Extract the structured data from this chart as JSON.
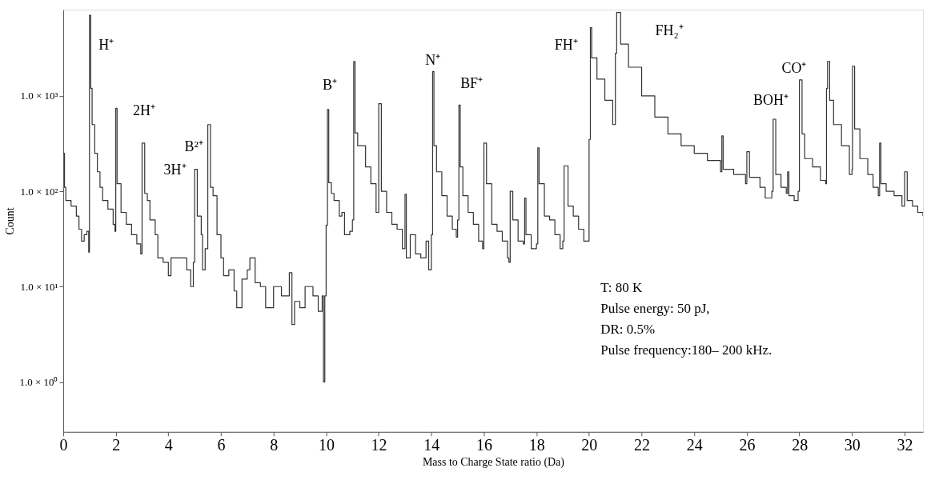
{
  "chart_data": {
    "type": "step",
    "xlabel": "Mass to Charge State ratio (Da)",
    "ylabel": "Count",
    "log": "y",
    "grid": false,
    "marker": "none",
    "line_style": "solid",
    "xlim": [
      0,
      32.7
    ],
    "xticks": [
      0,
      2,
      4,
      6,
      8,
      10,
      12,
      14,
      16,
      18,
      20,
      22,
      24,
      26,
      28,
      30,
      32
    ],
    "ylim": [
      0.3,
      8000
    ],
    "yticks": [
      {
        "value": 1,
        "label": "1.0 × 10⁰"
      },
      {
        "value": 10,
        "label": "1.0 × 10¹"
      },
      {
        "value": 100,
        "label": "1.0 × 10²"
      },
      {
        "value": 1000,
        "label": "1.0 × 10³"
      }
    ],
    "annotations": [
      "H⁺",
      "2H⁺",
      "3H⁺",
      "B²⁺",
      "B⁺",
      "N⁺",
      "BF⁺",
      "FH⁺",
      "FH₂⁺",
      "BOH⁺",
      "CO⁺",
      "T: 80 K",
      "Pulse energy: 50 pJ,",
      "DR: 0.5%",
      "Pulse frequency:180– 200 kHz."
    ],
    "series": [
      {
        "color": "#333333",
        "x": [
          0,
          0.05,
          0.1,
          0.3,
          0.5,
          0.6,
          0.7,
          0.8,
          0.9,
          0.97,
          1.0,
          1.05,
          1.1,
          1.2,
          1.3,
          1.4,
          1.5,
          1.7,
          1.9,
          1.97,
          2.0,
          2.05,
          2.2,
          2.4,
          2.6,
          2.8,
          2.95,
          3.0,
          3.1,
          3.2,
          3.3,
          3.5,
          3.6,
          3.8,
          4.0,
          4.1,
          4.4,
          4.7,
          4.85,
          4.95,
          5.0,
          5.1,
          5.25,
          5.3,
          5.4,
          5.5,
          5.6,
          5.7,
          5.85,
          6.0,
          6.1,
          6.3,
          6.5,
          6.6,
          6.8,
          7.0,
          7.1,
          7.3,
          7.5,
          7.7,
          8.0,
          8.3,
          8.6,
          8.7,
          8.8,
          9.0,
          9.2,
          9.5,
          9.7,
          9.85,
          9.9,
          9.95,
          10.0,
          10.05,
          10.1,
          10.2,
          10.3,
          10.5,
          10.6,
          10.7,
          10.9,
          11.0,
          11.05,
          11.1,
          11.2,
          11.5,
          11.7,
          11.9,
          12.0,
          12.1,
          12.3,
          12.5,
          12.7,
          12.9,
          13.0,
          13.05,
          13.2,
          13.4,
          13.6,
          13.8,
          13.9,
          14.0,
          14.05,
          14.1,
          14.2,
          14.4,
          14.6,
          14.8,
          14.95,
          15.0,
          15.05,
          15.1,
          15.2,
          15.4,
          15.6,
          15.8,
          15.95,
          16.0,
          16.1,
          16.3,
          16.5,
          16.7,
          16.9,
          16.95,
          17.0,
          17.1,
          17.3,
          17.5,
          17.55,
          17.6,
          17.8,
          18.0,
          18.05,
          18.1,
          18.3,
          18.5,
          18.7,
          18.9,
          19.0,
          19.05,
          19.2,
          19.4,
          19.6,
          19.8,
          19.95,
          20.0,
          20.05,
          20.1,
          20.3,
          20.6,
          20.9,
          21.0,
          21.05,
          21.2,
          21.5,
          22.0,
          22.5,
          23.0,
          23.5,
          24.0,
          24.5,
          25.0,
          25.05,
          25.1,
          25.5,
          25.95,
          26.0,
          26.1,
          26.5,
          26.7,
          26.95,
          27.0,
          27.1,
          27.3,
          27.5,
          27.55,
          27.6,
          27.8,
          27.95,
          28.0,
          28.1,
          28.2,
          28.5,
          28.8,
          29.0,
          29.03,
          29.07,
          29.15,
          29.3,
          29.6,
          29.9,
          30.0,
          30.02,
          30.1,
          30.3,
          30.6,
          30.8,
          31.0,
          31.05,
          31.1,
          31.3,
          31.6,
          31.9,
          32.0,
          32.1,
          32.3,
          32.5,
          32.7
        ],
        "values": [
          250,
          110,
          80,
          70,
          55,
          40,
          30,
          35,
          38,
          23,
          7000,
          1200,
          500,
          250,
          160,
          110,
          80,
          65,
          45,
          38,
          740,
          120,
          60,
          45,
          35,
          28,
          22,
          320,
          95,
          80,
          50,
          35,
          20,
          18,
          13,
          20,
          20,
          15,
          10,
          18,
          170,
          55,
          35,
          15,
          25,
          500,
          110,
          90,
          35,
          20,
          13,
          15,
          9,
          6,
          12,
          15,
          20,
          11,
          10,
          6,
          10,
          8,
          14,
          4,
          7,
          6,
          10,
          8,
          5.5,
          8,
          1,
          8,
          44,
          720,
          123,
          95,
          80,
          55,
          60,
          35,
          38,
          50,
          2300,
          410,
          300,
          180,
          120,
          60,
          830,
          100,
          60,
          45,
          40,
          25,
          93,
          20,
          35,
          22,
          20,
          30,
          15,
          35,
          1800,
          300,
          160,
          90,
          55,
          40,
          33,
          50,
          800,
          180,
          90,
          60,
          45,
          30,
          25,
          320,
          120,
          45,
          38,
          30,
          20,
          18,
          100,
          50,
          30,
          28,
          85,
          35,
          25,
          28,
          285,
          120,
          55,
          50,
          35,
          25,
          30,
          185,
          70,
          55,
          40,
          30,
          30,
          350,
          5200,
          2500,
          1500,
          900,
          500,
          2800,
          7500,
          3500,
          2000,
          1000,
          600,
          400,
          300,
          250,
          210,
          160,
          380,
          170,
          150,
          120,
          260,
          140,
          110,
          85,
          100,
          570,
          150,
          110,
          95,
          160,
          90,
          80,
          100,
          1470,
          400,
          220,
          180,
          130,
          120,
          1200,
          2300,
          900,
          500,
          300,
          150,
          170,
          2050,
          450,
          220,
          150,
          110,
          90,
          320,
          120,
          100,
          90,
          70,
          160,
          80,
          70,
          60,
          55
        ]
      }
    ]
  }
}
